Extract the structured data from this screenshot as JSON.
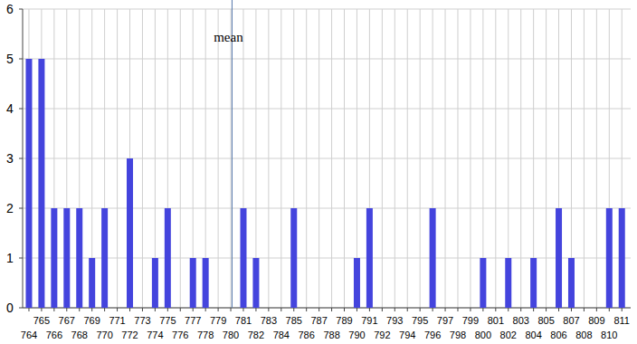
{
  "chart_data": {
    "type": "bar",
    "x": [
      764,
      765,
      766,
      767,
      768,
      769,
      770,
      771,
      772,
      773,
      774,
      775,
      776,
      777,
      778,
      779,
      780,
      781,
      782,
      783,
      784,
      785,
      786,
      787,
      788,
      789,
      790,
      791,
      792,
      793,
      794,
      795,
      796,
      797,
      798,
      799,
      800,
      801,
      802,
      803,
      804,
      805,
      806,
      807,
      808,
      809,
      810,
      811
    ],
    "values": [
      5,
      5,
      2,
      2,
      2,
      1,
      2,
      0,
      3,
      0,
      1,
      2,
      0,
      1,
      1,
      0,
      0,
      2,
      1,
      0,
      0,
      2,
      0,
      0,
      0,
      0,
      1,
      2,
      0,
      0,
      0,
      0,
      2,
      0,
      0,
      0,
      1,
      0,
      1,
      0,
      1,
      0,
      2,
      1,
      0,
      0,
      2,
      2
    ],
    "color": "#4444dd",
    "xlim": [
      763.5,
      811.7
    ],
    "xticks": [
      764,
      765,
      766,
      767,
      768,
      769,
      770,
      771,
      772,
      773,
      774,
      775,
      776,
      777,
      778,
      779,
      780,
      781,
      782,
      783,
      784,
      785,
      786,
      787,
      788,
      789,
      790,
      791,
      792,
      793,
      794,
      795,
      796,
      797,
      798,
      799,
      800,
      801,
      802,
      803,
      804,
      805,
      806,
      807,
      808,
      809,
      810,
      811
    ],
    "ylim": [
      0,
      6
    ],
    "yticks": [
      0,
      1,
      2,
      3,
      4,
      5,
      6
    ],
    "grid": true,
    "annotations": [
      {
        "text": "mean",
        "x": 780.1
      }
    ]
  }
}
